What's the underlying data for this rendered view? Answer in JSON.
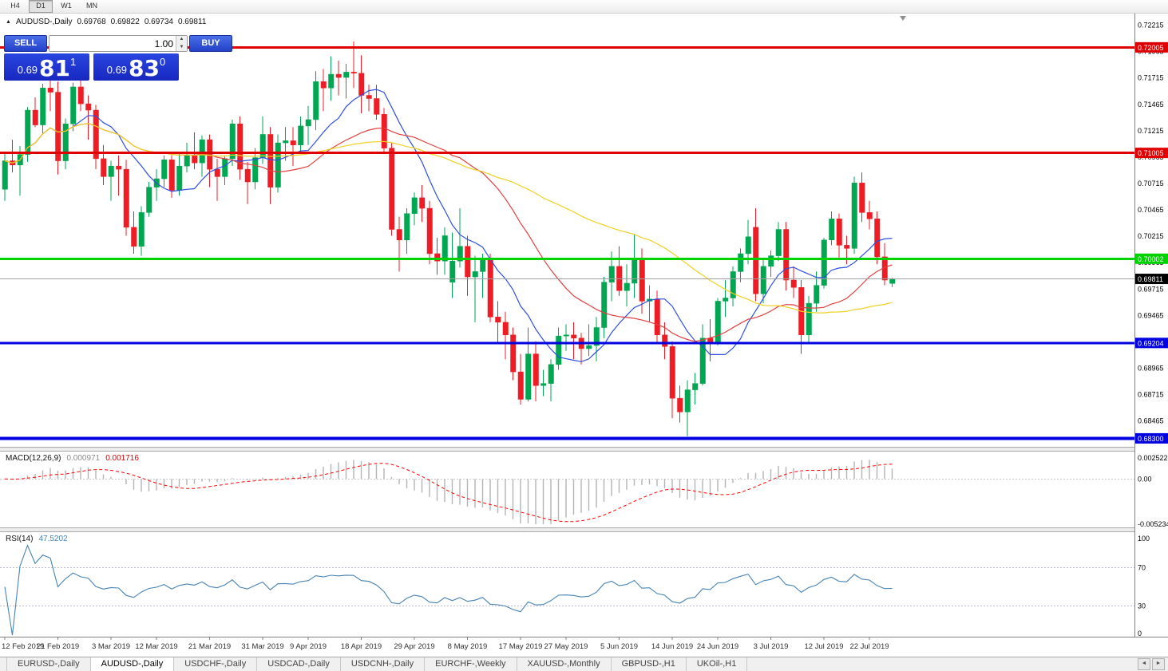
{
  "icons": {
    "collapse_panel": "▲",
    "volume_up": "▲",
    "volume_down": "▼",
    "tabs_left": "◄",
    "tabs_right": "►"
  },
  "colors": {
    "bull": "#00a651",
    "bear": "#ee1c25",
    "ma_fast": "#2e4fe0",
    "ma_mid": "#e24040",
    "ma_slow": "#f0d020",
    "resistance_red": "#e00000",
    "support_green": "#00d200",
    "support_blue": "#0000e0",
    "macd_hist": "#b4b4b4",
    "macd_signal": "#ff0000",
    "rsi_line": "#4682b4",
    "panel_blue": "#2342c8",
    "price_box_blue": "#1c2fd2",
    "current_price_line": "#a0a0a0"
  },
  "toolbar": {
    "timeframes": [
      {
        "label": "H4",
        "active": false
      },
      {
        "label": "D1",
        "active": true
      },
      {
        "label": "W1",
        "active": false
      },
      {
        "label": "MN",
        "active": false
      }
    ]
  },
  "chart_header": {
    "symbol_title": "AUDUSD-,Daily",
    "open": "0.69768",
    "high": "0.69822",
    "low": "0.69734",
    "close": "0.69811"
  },
  "one_click": {
    "sell_label": "SELL",
    "buy_label": "BUY",
    "volume": "1.00",
    "sell_price": {
      "small": "0.69",
      "big": "81",
      "sup": "1"
    },
    "buy_price": {
      "small": "0.69",
      "big": "83",
      "sup": "0"
    }
  },
  "macd_panel": {
    "name": "MACD(12,26,9)",
    "value_main": "0.000971",
    "value_signal": "0.001716",
    "axis_max": "0.002522",
    "axis_zero": "0.00",
    "axis_min": "-0.005234"
  },
  "rsi_panel": {
    "name": "RSI(14)",
    "value": "47.5202",
    "axis": [
      "100",
      "70",
      "30",
      "0"
    ]
  },
  "tabs": [
    {
      "label": "EURUSD-,Daily",
      "active": false
    },
    {
      "label": "AUDUSD-,Daily",
      "active": true
    },
    {
      "label": "USDCHF-,Daily",
      "active": false
    },
    {
      "label": "USDCAD-,Daily",
      "active": false
    },
    {
      "label": "USDCNH-,Daily",
      "active": false
    },
    {
      "label": "EURCHF-,Weekly",
      "active": false
    },
    {
      "label": "XAUUSD-,Monthly",
      "active": false
    },
    {
      "label": "GBPUSD-,H1",
      "active": false
    },
    {
      "label": "UKOil-,H1",
      "active": false
    }
  ],
  "chart_data": {
    "type": "candlestick",
    "symbol": "AUDUSD-",
    "timeframe": "Daily",
    "last_ohlc": {
      "open": 0.69768,
      "high": 0.69822,
      "low": 0.69734,
      "close": 0.69811
    },
    "price_range": {
      "min": 0.6822,
      "max": 0.7231
    },
    "open": [
      0.7066,
      0.7093,
      0.7089,
      0.7099,
      0.7141,
      0.7127,
      0.7162,
      0.7158,
      0.7093,
      0.7128,
      0.7163,
      0.7147,
      0.7141,
      0.7095,
      0.7078,
      0.7088,
      0.7085,
      0.703,
      0.7012,
      0.7044,
      0.7068,
      0.7076,
      0.7094,
      0.7065,
      0.7088,
      0.7098,
      0.7091,
      0.7113,
      0.7085,
      0.7078,
      0.7095,
      0.7128,
      0.7085,
      0.7073,
      0.7096,
      0.7118,
      0.7068,
      0.711,
      0.7112,
      0.7108,
      0.7126,
      0.7132,
      0.7168,
      0.7162,
      0.7175,
      0.7172,
      0.7177,
      0.7176,
      0.7155,
      0.7152,
      0.7137,
      0.7105,
      0.7028,
      0.7018,
      0.7043,
      0.7058,
      0.7048,
      0.7005,
      0.6998,
      0.6978,
      0.6998,
      0.7012,
      0.6983,
      0.6988,
      0.7,
      0.6945,
      0.694,
      0.6928,
      0.6893,
      0.6867,
      0.691,
      0.688,
      0.6882,
      0.69,
      0.6927,
      0.6928,
      0.6925,
      0.6915,
      0.6918,
      0.6935,
      0.6978,
      0.6993,
      0.697,
      0.6977,
      0.7,
      0.696,
      0.6962,
      0.6928,
      0.6917,
      0.6868,
      0.6855,
      0.6876,
      0.6882,
      0.6925,
      0.6921,
      0.696,
      0.6963,
      0.6988,
      0.7005,
      0.703,
      0.6967,
      0.6993,
      0.7003,
      0.7028,
      0.698,
      0.6973,
      0.6928,
      0.6958,
      0.6975,
      0.7018,
      0.7038,
      0.7013,
      0.701,
      0.7072,
      0.7044,
      0.7038,
      0.7002,
      0.69768
    ],
    "high": [
      0.71,
      0.7113,
      0.7107,
      0.7144,
      0.7153,
      0.7166,
      0.7173,
      0.7168,
      0.7133,
      0.7167,
      0.7172,
      0.7155,
      0.7146,
      0.7108,
      0.7093,
      0.7098,
      0.7094,
      0.7045,
      0.705,
      0.7073,
      0.7085,
      0.7098,
      0.7098,
      0.71,
      0.711,
      0.712,
      0.7117,
      0.7118,
      0.7095,
      0.7098,
      0.7132,
      0.7135,
      0.7092,
      0.7105,
      0.7135,
      0.7125,
      0.7118,
      0.7125,
      0.7125,
      0.7135,
      0.7145,
      0.7178,
      0.718,
      0.7192,
      0.7188,
      0.7185,
      0.7206,
      0.7193,
      0.7165,
      0.7165,
      0.7143,
      0.711,
      0.704,
      0.7048,
      0.7063,
      0.707,
      0.7055,
      0.702,
      0.703,
      0.7025,
      0.7048,
      0.7022,
      0.7003,
      0.7005,
      0.7005,
      0.696,
      0.695,
      0.6935,
      0.691,
      0.6935,
      0.6922,
      0.6895,
      0.6905,
      0.6935,
      0.6938,
      0.694,
      0.693,
      0.6938,
      0.6945,
      0.6983,
      0.7007,
      0.7012,
      0.6995,
      0.7023,
      0.701,
      0.6975,
      0.697,
      0.694,
      0.6922,
      0.688,
      0.6885,
      0.6892,
      0.6938,
      0.6943,
      0.6963,
      0.698,
      0.6993,
      0.701,
      0.7037,
      0.7048,
      0.7,
      0.7008,
      0.7035,
      0.7035,
      0.6993,
      0.698,
      0.6965,
      0.6988,
      0.702,
      0.7045,
      0.7043,
      0.7022,
      0.7078,
      0.7082,
      0.7055,
      0.7045,
      0.7015,
      0.69822
    ],
    "low": [
      0.7055,
      0.7082,
      0.706,
      0.7092,
      0.7125,
      0.7119,
      0.714,
      0.708,
      0.7085,
      0.7121,
      0.714,
      0.7113,
      0.7085,
      0.707,
      0.7055,
      0.706,
      0.7022,
      0.7005,
      0.7003,
      0.704,
      0.7055,
      0.7068,
      0.7058,
      0.706,
      0.7082,
      0.7085,
      0.7078,
      0.7068,
      0.7055,
      0.707,
      0.7088,
      0.7075,
      0.7052,
      0.7066,
      0.709,
      0.7052,
      0.7063,
      0.7093,
      0.7088,
      0.71,
      0.7108,
      0.7122,
      0.714,
      0.715,
      0.7155,
      0.7152,
      0.7162,
      0.7138,
      0.714,
      0.7132,
      0.71,
      0.7022,
      0.6988,
      0.7005,
      0.7032,
      0.7035,
      0.6995,
      0.6985,
      0.6985,
      0.6963,
      0.6992,
      0.6965,
      0.694,
      0.6963,
      0.694,
      0.692,
      0.6905,
      0.6885,
      0.6862,
      0.6865,
      0.6865,
      0.687,
      0.6865,
      0.6895,
      0.6913,
      0.6905,
      0.69,
      0.6908,
      0.6903,
      0.6925,
      0.696,
      0.6965,
      0.6955,
      0.6963,
      0.6948,
      0.694,
      0.692,
      0.6905,
      0.6849,
      0.6845,
      0.6832,
      0.6862,
      0.688,
      0.6903,
      0.6918,
      0.6945,
      0.6955,
      0.6978,
      0.6995,
      0.696,
      0.6958,
      0.6983,
      0.6998,
      0.697,
      0.6963,
      0.691,
      0.692,
      0.695,
      0.6972,
      0.7013,
      0.7,
      0.6995,
      0.7005,
      0.7035,
      0.7028,
      0.6995,
      0.6975,
      0.69734
    ],
    "close": [
      0.7093,
      0.7089,
      0.7099,
      0.7141,
      0.7127,
      0.7162,
      0.7158,
      0.7093,
      0.7128,
      0.7163,
      0.7147,
      0.7141,
      0.7095,
      0.7078,
      0.7088,
      0.7085,
      0.703,
      0.7012,
      0.7044,
      0.7068,
      0.7076,
      0.7094,
      0.7065,
      0.7088,
      0.7098,
      0.7091,
      0.7113,
      0.7085,
      0.7078,
      0.7095,
      0.7128,
      0.7085,
      0.7073,
      0.7096,
      0.7118,
      0.7068,
      0.711,
      0.7112,
      0.7108,
      0.7126,
      0.7132,
      0.7168,
      0.7162,
      0.7175,
      0.7172,
      0.7177,
      0.7176,
      0.7155,
      0.7152,
      0.7137,
      0.7105,
      0.7028,
      0.7018,
      0.7043,
      0.7058,
      0.7048,
      0.7005,
      0.6998,
      0.7022,
      0.6998,
      0.7012,
      0.6983,
      0.6988,
      0.7,
      0.6945,
      0.694,
      0.6928,
      0.6893,
      0.6867,
      0.691,
      0.688,
      0.6882,
      0.69,
      0.6927,
      0.6928,
      0.6925,
      0.6915,
      0.6918,
      0.6935,
      0.6978,
      0.6993,
      0.697,
      0.6977,
      0.7,
      0.696,
      0.6962,
      0.6928,
      0.6917,
      0.6868,
      0.6855,
      0.6876,
      0.6882,
      0.6925,
      0.6921,
      0.696,
      0.6963,
      0.6988,
      0.7005,
      0.7021,
      0.6967,
      0.6993,
      0.7003,
      0.7028,
      0.698,
      0.6973,
      0.6928,
      0.6958,
      0.6975,
      0.7018,
      0.7038,
      0.7013,
      0.701,
      0.7072,
      0.7044,
      0.7038,
      0.7002,
      0.698,
      0.69811
    ],
    "x_ticks": [
      {
        "label": "12 Feb 2019",
        "i": 0
      },
      {
        "label": "21 Feb 2019",
        "i": 7
      },
      {
        "label": "3 Mar 2019",
        "i": 14
      },
      {
        "label": "12 Mar 2019",
        "i": 20
      },
      {
        "label": "21 Mar 2019",
        "i": 27
      },
      {
        "label": "31 Mar 2019",
        "i": 34
      },
      {
        "label": "9 Apr 2019",
        "i": 40
      },
      {
        "label": "18 Apr 2019",
        "i": 47
      },
      {
        "label": "29 Apr 2019",
        "i": 54
      },
      {
        "label": "8 May 2019",
        "i": 61
      },
      {
        "label": "17 May 2019",
        "i": 68
      },
      {
        "label": "27 May 2019",
        "i": 74
      },
      {
        "label": "5 Jun 2019",
        "i": 81
      },
      {
        "label": "14 Jun 2019",
        "i": 88
      },
      {
        "label": "24 Jun 2019",
        "i": 94
      },
      {
        "label": "3 Jul 2019",
        "i": 101
      },
      {
        "label": "12 Jul 2019",
        "i": 108
      },
      {
        "label": "22 Jul 2019",
        "i": 114
      }
    ],
    "price_axis_labels": [
      "0.72215",
      "0.71965",
      "0.71715",
      "0.71465",
      "0.71215",
      "0.70965",
      "0.70715",
      "0.70465",
      "0.70215",
      "0.69965",
      "0.69715",
      "0.69465",
      "0.68965",
      "0.68715",
      "0.68465"
    ],
    "h_lines": [
      {
        "price": 0.72005,
        "label": "0.72005",
        "color": "#e00000",
        "width": 3
      },
      {
        "price": 0.71005,
        "label": "0.71005",
        "color": "#e00000",
        "width": 3
      },
      {
        "price": 0.70002,
        "label": "0.70002",
        "color": "#00d200",
        "width": 3
      },
      {
        "price": 0.69204,
        "label": "0.69204",
        "color": "#0000e0",
        "width": 3
      },
      {
        "price": 0.683,
        "label": "0.68300",
        "color": "#0000e0",
        "width": 4
      }
    ],
    "current_price": {
      "price": 0.69811,
      "label": "0.69811"
    },
    "moving_averages": [
      {
        "period": 10,
        "color": "#2e4fe0"
      },
      {
        "period": 25,
        "color": "#e24040"
      },
      {
        "period": 50,
        "color": "#f0d020"
      }
    ],
    "macd": {
      "fast": 12,
      "slow": 26,
      "signal_period": 9,
      "current_main": 0.000971,
      "current_signal": 0.001716,
      "range": {
        "max": 0.002522,
        "min": -0.005234
      }
    },
    "rsi": {
      "period": 14,
      "current": 47.5202,
      "levels": [
        70,
        30
      ],
      "range": [
        0,
        100
      ]
    }
  }
}
